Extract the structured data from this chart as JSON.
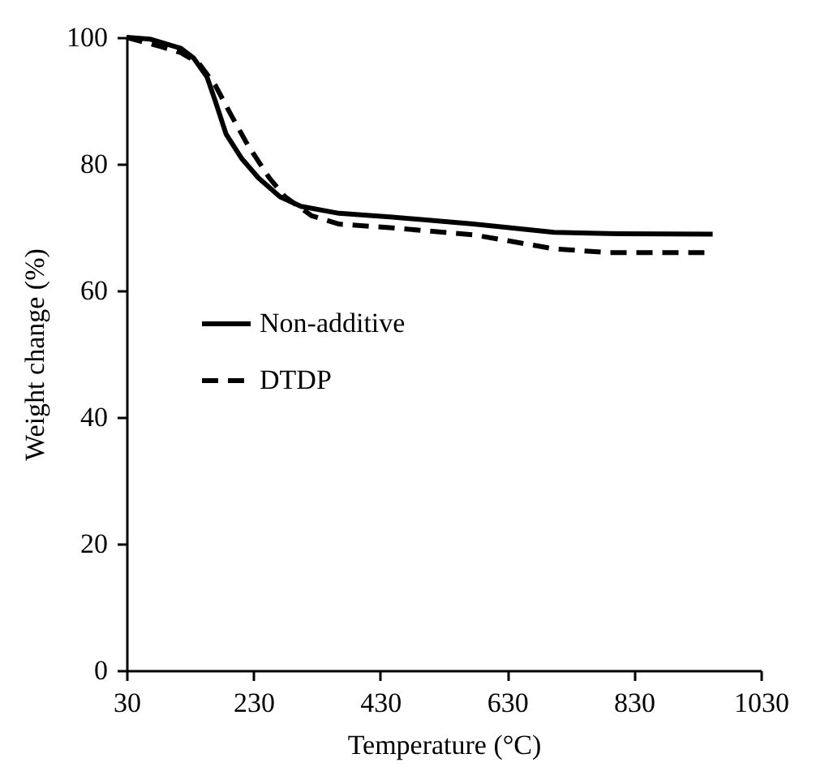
{
  "chart_data": {
    "type": "line",
    "xlabel": "Temperature (°C)",
    "ylabel": "Weight change (%)",
    "xlim": [
      30,
      1030
    ],
    "xticks": [
      30,
      230,
      430,
      630,
      830,
      1030
    ],
    "ylim": [
      0,
      100
    ],
    "yticks": [
      0,
      20,
      40,
      60,
      80,
      100
    ],
    "grid": false,
    "legend": "left",
    "marker": "none",
    "series": [
      {
        "name": "Non-additive",
        "color": "#000000",
        "line_style": "solid",
        "x": [
          30,
          68,
          115,
          136,
          157,
          170,
          187,
          212,
          238,
          272,
          305,
          365,
          449,
          577,
          704,
          788,
          954
        ],
        "values": [
          100,
          99.7,
          98.3,
          96.7,
          93.7,
          89.9,
          84.7,
          80.8,
          77.8,
          74.8,
          73.3,
          72.2,
          71.6,
          70.5,
          69.2,
          69.0,
          68.9
        ]
      },
      {
        "name": "DTDP",
        "color": "#000000",
        "line_style": "dashed",
        "x": [
          30,
          85,
          115,
          144,
          170,
          195,
          221,
          255,
          280,
          322,
          365,
          449,
          577,
          704,
          788,
          941
        ],
        "values": [
          100,
          98.5,
          97.6,
          95.9,
          92.4,
          87.7,
          83,
          77.8,
          74.8,
          71.8,
          70.5,
          69.9,
          68.8,
          66.6,
          66,
          66
        ]
      }
    ]
  }
}
